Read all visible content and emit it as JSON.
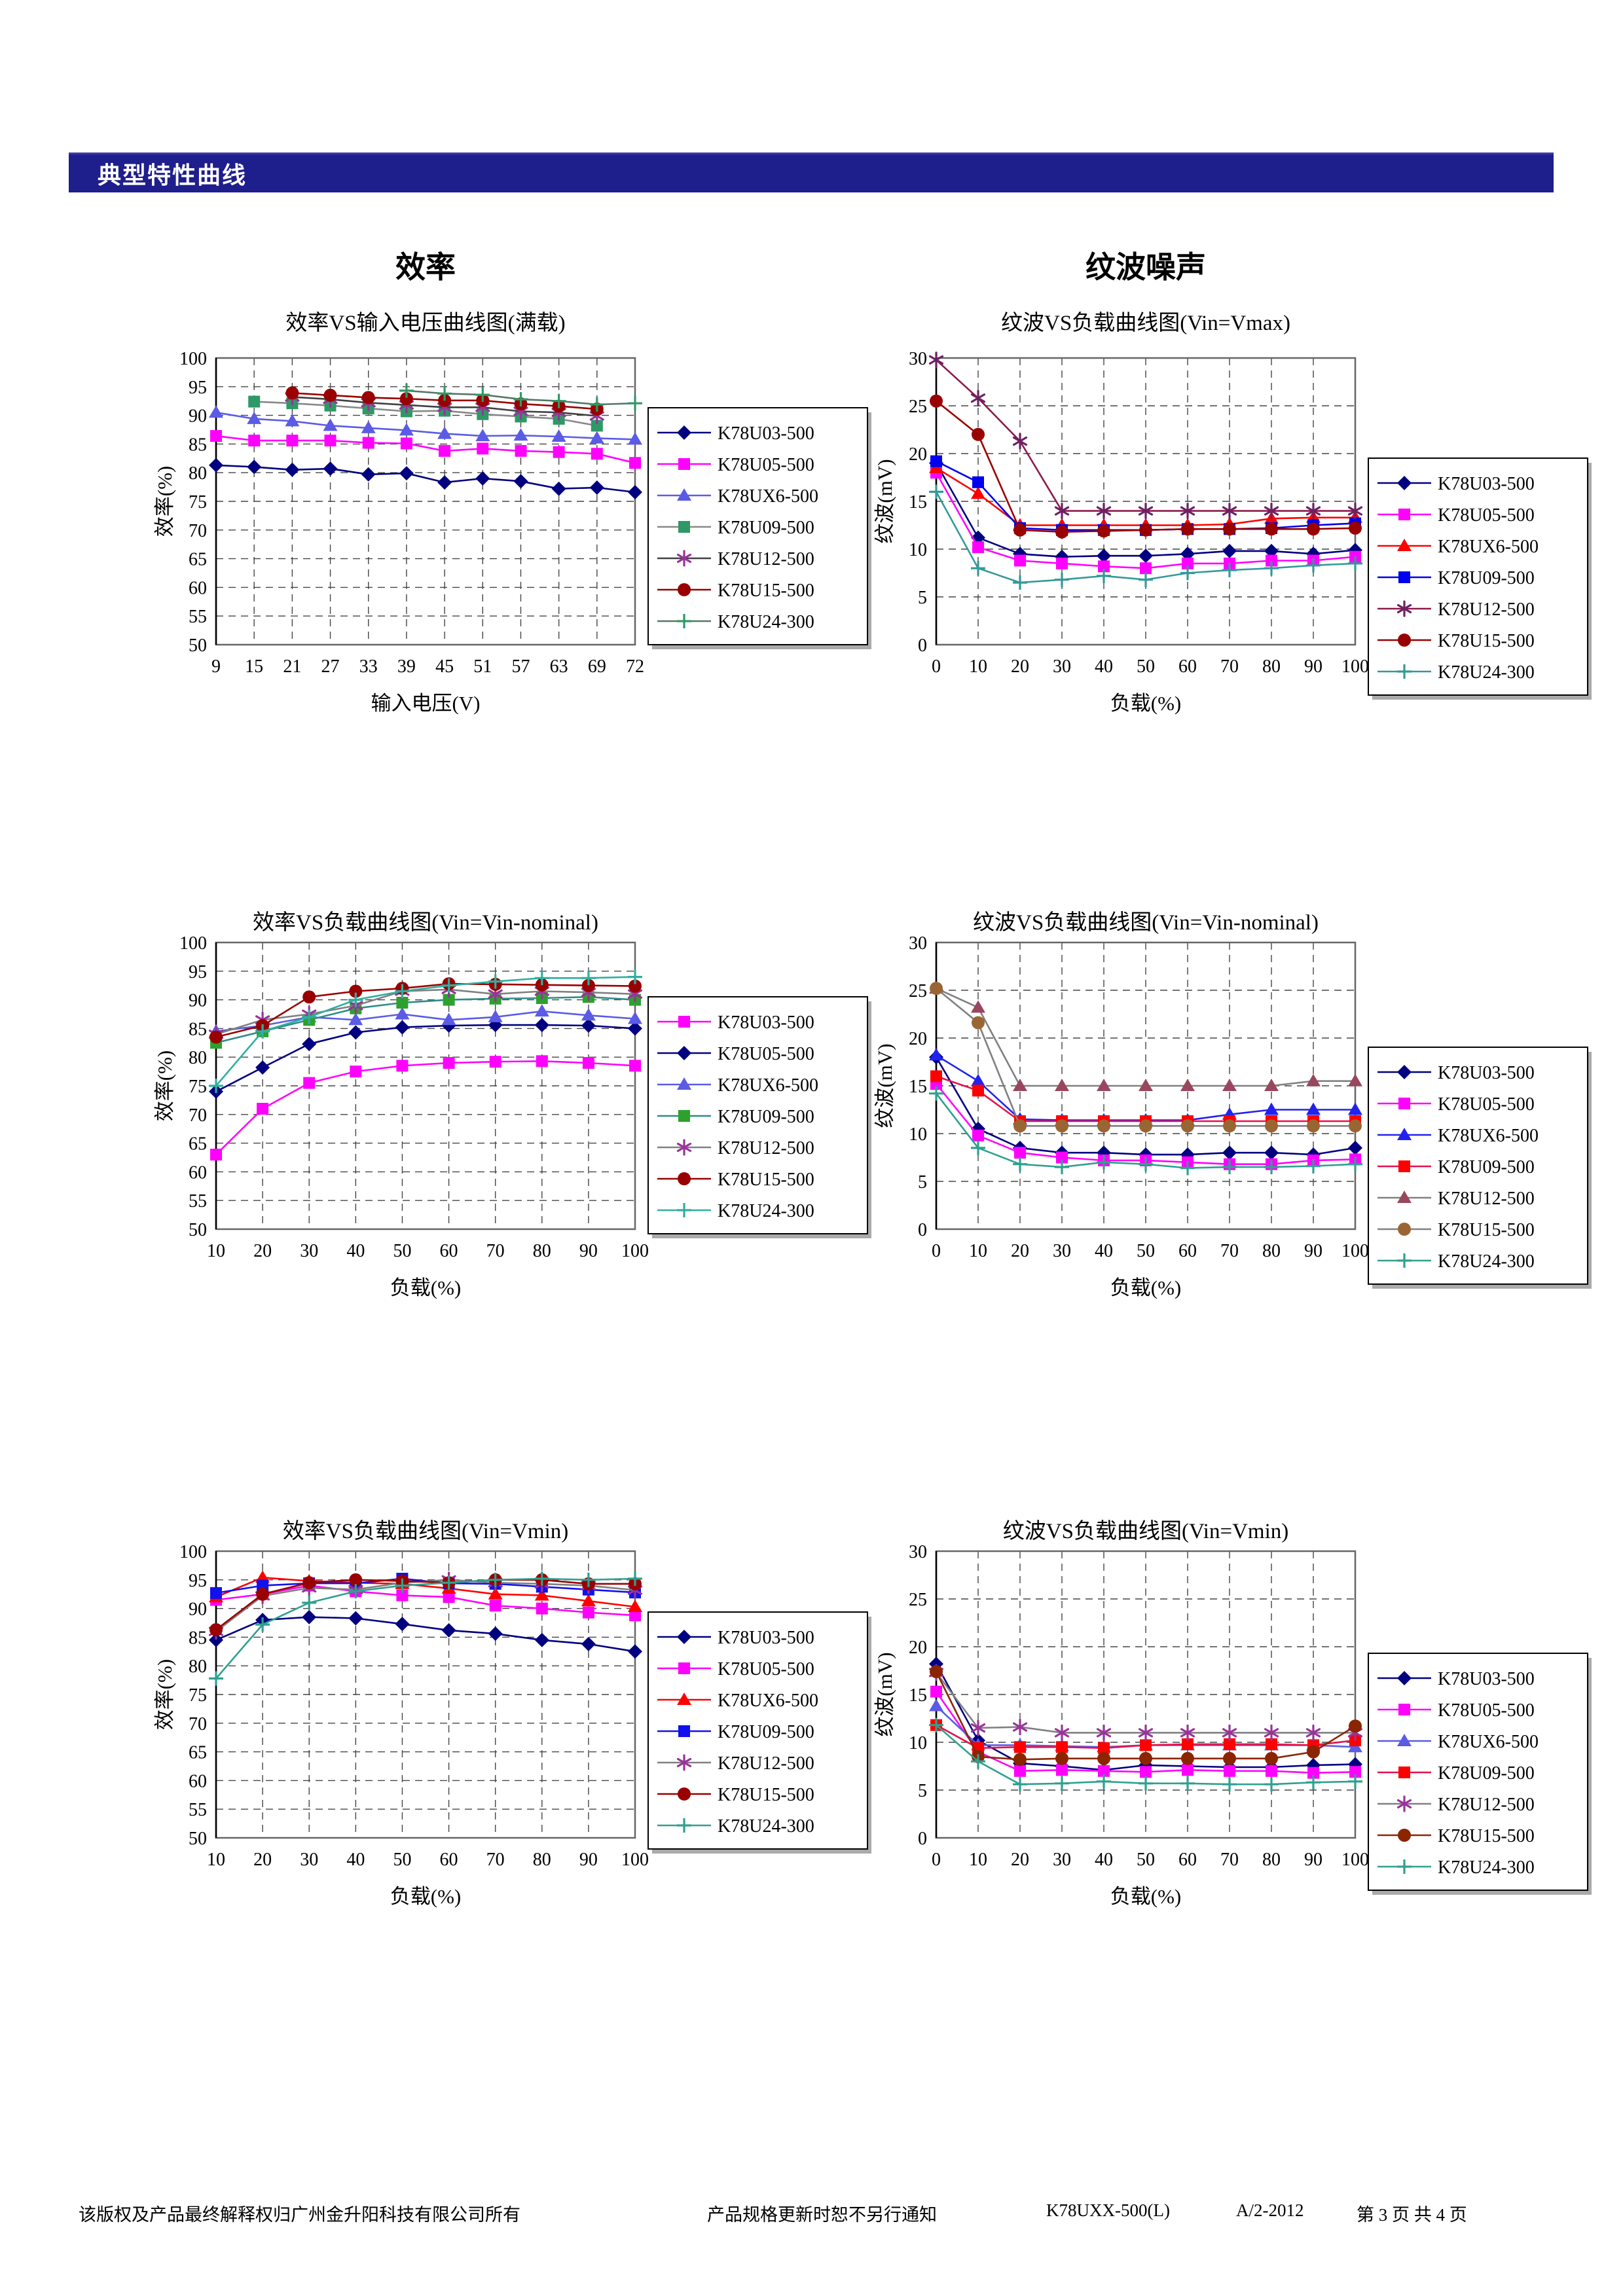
{
  "header": {
    "bar_title": "典型特性曲线"
  },
  "sections": {
    "left_title": "效率",
    "right_title": "纹波噪声"
  },
  "footer": {
    "copyright": "该版权及产品最终解释权归广州金升阳科技有限公司所有",
    "notice": "产品规格更新时恕不另行通知",
    "model": "K78UXX-500(L)",
    "revision": "A/2-2012",
    "page": "第 3 页 共 4 页"
  },
  "chart_data": [
    {
      "id": "eff-vs-vin-fullload",
      "type": "line",
      "title": "效率VS输入电压曲线图(满载)",
      "xlabel": "输入电压(V)",
      "ylabel": "效率(%)",
      "x": [
        "9",
        "15",
        "21",
        "27",
        "33",
        "39",
        "45",
        "51",
        "57",
        "63",
        "69",
        "72"
      ],
      "ylim": [
        50,
        100
      ],
      "ystep": 5,
      "grid": true,
      "legend_position": "right-upper",
      "legend_y": 88,
      "series": [
        {
          "name": "K78U03-500",
          "marker": "diamond",
          "color": "#000080",
          "line": "#000080",
          "values": [
            81.3,
            81,
            80.5,
            80.7,
            79.7,
            79.9,
            78.3,
            79,
            78.5,
            77.2,
            77.4,
            76.6
          ]
        },
        {
          "name": "K78U05-500",
          "marker": "square",
          "color": "#ff00ff",
          "line": "#ff00ff",
          "values": [
            86.4,
            85.6,
            85.6,
            85.6,
            85.2,
            85.1,
            83.8,
            84.2,
            83.8,
            83.6,
            83.3,
            81.7
          ]
        },
        {
          "name": "K78UX6-500",
          "marker": "triangle",
          "color": "#5b5be6",
          "line": "#5b5be6",
          "values": [
            90.5,
            89.4,
            89,
            88.2,
            87.8,
            87.4,
            86.8,
            86.4,
            86.5,
            86.3,
            86,
            85.8
          ]
        },
        {
          "name": "K78U09-500",
          "marker": "square",
          "color": "#2e9966",
          "line": "#888888",
          "values": [
            null,
            92.4,
            92.1,
            91.7,
            91.2,
            90.7,
            90.8,
            90.2,
            89.8,
            89.4,
            88.2,
            null
          ]
        },
        {
          "name": "K78U12-500",
          "marker": "asterisk",
          "color": "#993399",
          "line": "#404040",
          "values": [
            null,
            null,
            93.2,
            92.8,
            92.2,
            91.8,
            91.4,
            91.4,
            90.7,
            90.5,
            89.9,
            null
          ]
        },
        {
          "name": "K78U15-500",
          "marker": "circle",
          "color": "#990000",
          "line": "#990000",
          "values": [
            null,
            null,
            93.9,
            93.5,
            93.1,
            92.9,
            92.6,
            92.6,
            92,
            91.6,
            91.1,
            null
          ]
        },
        {
          "name": "K78U24-300",
          "marker": "cross",
          "color": "#2e9966",
          "line": "#557766",
          "values": [
            null,
            null,
            null,
            null,
            null,
            94.3,
            93.8,
            93.6,
            92.8,
            92.5,
            91.9,
            92.1
          ]
        }
      ]
    },
    {
      "id": "ripple-vs-load-vmax",
      "type": "line",
      "title": "纹波VS负载曲线图(Vin=Vmax)",
      "xlabel": "负载(%)",
      "ylabel": "纹波(mV)",
      "x": [
        "0",
        "10",
        "20",
        "30",
        "40",
        "50",
        "60",
        "70",
        "80",
        "90",
        "100"
      ],
      "ylim": [
        0,
        30
      ],
      "ystep": 5,
      "grid": true,
      "legend_position": "right-middle",
      "legend_y": 165,
      "series": [
        {
          "name": "K78U03-500",
          "marker": "diamond",
          "color": "#000080",
          "line": "#000080",
          "values": [
            19,
            11.2,
            9.5,
            9.2,
            9.3,
            9.3,
            9.5,
            9.8,
            9.8,
            9.5,
            9.9
          ]
        },
        {
          "name": "K78U05-500",
          "marker": "square",
          "color": "#ff00ff",
          "line": "#ff00ff",
          "values": [
            18,
            10.2,
            8.8,
            8.5,
            8.2,
            8,
            8.5,
            8.5,
            8.8,
            8.8,
            9.2
          ]
        },
        {
          "name": "K78UX6-500",
          "marker": "triangle",
          "color": "#ff0000",
          "line": "#ff0000",
          "values": [
            18.5,
            15.8,
            12.5,
            12.5,
            12.5,
            12.5,
            12.5,
            12.6,
            13.2,
            13.3,
            13.3
          ]
        },
        {
          "name": "K78U09-500",
          "marker": "square",
          "color": "#0000ee",
          "line": "#0000ee",
          "values": [
            19.2,
            17,
            12.2,
            12,
            12,
            12,
            12.1,
            12.1,
            12.2,
            12.5,
            12.7
          ]
        },
        {
          "name": "K78U12-500",
          "marker": "asterisk",
          "color": "#6b2162",
          "line": "#8b1a4a",
          "values": [
            29.8,
            25.8,
            21.3,
            14,
            14,
            14,
            14,
            14,
            14,
            14,
            14
          ]
        },
        {
          "name": "K78U15-500",
          "marker": "circle",
          "color": "#990000",
          "line": "#990000",
          "values": [
            25.5,
            22,
            12,
            11.8,
            11.9,
            12,
            12.1,
            12.1,
            12.1,
            12.1,
            12.2
          ]
        },
        {
          "name": "K78U24-300",
          "marker": "cross",
          "color": "#339999",
          "line": "#339999",
          "values": [
            16,
            8,
            6.5,
            6.8,
            7.2,
            6.8,
            7.5,
            7.8,
            8,
            8.3,
            8.5
          ]
        }
      ]
    },
    {
      "id": "eff-vs-load-nominal",
      "type": "line",
      "title": "效率VS负载曲线图(Vin=Vin-nominal)",
      "xlabel": "负载(%)",
      "ylabel": "效率(%)",
      "x": [
        "10",
        "20",
        "30",
        "40",
        "50",
        "60",
        "70",
        "80",
        "90",
        "100"
      ],
      "ylim": [
        50,
        100
      ],
      "ystep": 5,
      "grid": true,
      "legend_position": "right-upper",
      "legend_y": 95,
      "series": [
        {
          "name": "K78U03-500",
          "marker": "square",
          "color": "#ff00ff",
          "line": "#ff00ff",
          "values": [
            63,
            71,
            75.5,
            77.5,
            78.5,
            79,
            79.2,
            79.3,
            79,
            78.5
          ]
        },
        {
          "name": "K78U05-500",
          "marker": "diamond",
          "color": "#000080",
          "line": "#000080",
          "values": [
            74,
            78.2,
            82.3,
            84.3,
            85.2,
            85.5,
            85.6,
            85.6,
            85.5,
            85
          ]
        },
        {
          "name": "K78UX6-500",
          "marker": "triangle",
          "color": "#5b5be6",
          "line": "#5b5be6",
          "values": [
            84.5,
            85.5,
            87,
            86.5,
            87.5,
            86.5,
            87,
            88,
            87.3,
            86.7
          ]
        },
        {
          "name": "K78U09-500",
          "marker": "square",
          "color": "#2da12d",
          "line": "#2e8b8b",
          "values": [
            82.5,
            84.5,
            86.5,
            88.5,
            89.5,
            90,
            90.2,
            90.3,
            90.5,
            90
          ]
        },
        {
          "name": "K78U12-500",
          "marker": "asterisk",
          "color": "#993399",
          "line": "#808080",
          "values": [
            84,
            86.5,
            87.5,
            89,
            91.5,
            91.8,
            91,
            91.5,
            91.3,
            91
          ]
        },
        {
          "name": "K78U15-500",
          "marker": "circle",
          "color": "#990000",
          "line": "#990000",
          "values": [
            83.5,
            85.5,
            90.5,
            91.5,
            92,
            92.8,
            92.7,
            92.6,
            92.5,
            92.4
          ]
        },
        {
          "name": "K78U24-300",
          "marker": "cross",
          "color": "#2faf9f",
          "line": "#2faf9f",
          "values": [
            75,
            84.5,
            87,
            90,
            91.5,
            92.5,
            93.2,
            93.8,
            93.8,
            94
          ]
        }
      ]
    },
    {
      "id": "ripple-vs-load-nominal",
      "type": "line",
      "title": "纹波VS负载曲线图(Vin=Vin-nominal)",
      "xlabel": "负载(%)",
      "ylabel": "纹波(mV)",
      "x": [
        "0",
        "10",
        "20",
        "30",
        "40",
        "50",
        "60",
        "70",
        "80",
        "90",
        "100"
      ],
      "ylim": [
        0,
        30
      ],
      "ystep": 5,
      "grid": true,
      "legend_position": "right-middle",
      "legend_y": 172,
      "series": [
        {
          "name": "K78U03-500",
          "marker": "diamond",
          "color": "#000080",
          "line": "#000080",
          "values": [
            18,
            10.5,
            8.5,
            8,
            8,
            7.8,
            7.8,
            8,
            8,
            7.8,
            8.5
          ]
        },
        {
          "name": "K78U05-500",
          "marker": "square",
          "color": "#ff00ff",
          "line": "#ff00ff",
          "values": [
            15.2,
            9.8,
            8,
            7.5,
            7.2,
            7.2,
            7,
            6.8,
            6.8,
            7.2,
            7.3
          ]
        },
        {
          "name": "K78UX6-500",
          "marker": "triangle",
          "color": "#2222ee",
          "line": "#2222ee",
          "values": [
            18.2,
            15.5,
            11.5,
            11.4,
            11.4,
            11.4,
            11.4,
            12,
            12.5,
            12.5,
            12.5
          ]
        },
        {
          "name": "K78U09-500",
          "marker": "square",
          "color": "#ff0000",
          "line": "#e8114b",
          "values": [
            16,
            14.5,
            11.3,
            11.3,
            11.3,
            11.3,
            11.3,
            11.3,
            11.3,
            11.3,
            11.3
          ]
        },
        {
          "name": "K78U12-500",
          "marker": "triangle",
          "color": "#99475e",
          "line": "#808080",
          "values": [
            25.2,
            23.2,
            15,
            15,
            15,
            15,
            15,
            15,
            15,
            15.5,
            15.5
          ]
        },
        {
          "name": "K78U15-500",
          "marker": "circle",
          "color": "#996633",
          "line": "#808080",
          "values": [
            25.2,
            21.6,
            10.8,
            10.8,
            10.8,
            10.8,
            10.8,
            10.8,
            10.8,
            10.8,
            10.8
          ]
        },
        {
          "name": "K78U24-300",
          "marker": "cross",
          "color": "#2fa08f",
          "line": "#2fa08f",
          "values": [
            14.2,
            8.5,
            6.8,
            6.5,
            7,
            6.8,
            6.4,
            6.5,
            6.5,
            6.6,
            6.8
          ]
        }
      ]
    },
    {
      "id": "eff-vs-load-vmin",
      "type": "line",
      "title": "效率VS负载曲线图(Vin=Vmin)",
      "xlabel": "负载(%)",
      "ylabel": "效率(%)",
      "x": [
        "10",
        "20",
        "30",
        "40",
        "50",
        "60",
        "70",
        "80",
        "90",
        "100"
      ],
      "ylim": [
        50,
        100
      ],
      "ystep": 5,
      "grid": true,
      "legend_position": "right-upper",
      "legend_y": 105,
      "series": [
        {
          "name": "K78U03-500",
          "marker": "diamond",
          "color": "#000080",
          "line": "#000080",
          "values": [
            84.5,
            88,
            88.5,
            88.3,
            87.3,
            86.2,
            85.6,
            84.5,
            83.8,
            82.5
          ]
        },
        {
          "name": "K78U05-500",
          "marker": "square",
          "color": "#ff00ff",
          "line": "#ff00ff",
          "values": [
            91.5,
            92.5,
            94,
            93,
            92.3,
            92,
            90.5,
            90,
            89.3,
            88.8
          ]
        },
        {
          "name": "K78UX6-500",
          "marker": "triangle",
          "color": "#ff0000",
          "line": "#ff0000",
          "values": [
            92,
            95.4,
            94.8,
            94.5,
            94.3,
            93.5,
            92.5,
            92.3,
            91.3,
            90.3
          ]
        },
        {
          "name": "K78U09-500",
          "marker": "square",
          "color": "#1111ee",
          "line": "#1111ee",
          "values": [
            92.7,
            94,
            94.4,
            94.4,
            95.2,
            94.4,
            94.3,
            93.8,
            93.3,
            92.8
          ]
        },
        {
          "name": "K78U12-500",
          "marker": "asterisk",
          "color": "#993399",
          "line": "#808080",
          "values": [
            86,
            92.2,
            93.6,
            93.3,
            94.5,
            95,
            94.5,
            94.3,
            94,
            93.2
          ]
        },
        {
          "name": "K78U15-500",
          "marker": "circle",
          "color": "#990000",
          "line": "#990000",
          "values": [
            86.3,
            92.5,
            94.5,
            95,
            94.8,
            94.5,
            95,
            95,
            94.3,
            94.3
          ]
        },
        {
          "name": "K78U24-300",
          "marker": "cross",
          "color": "#2fa08f",
          "line": "#2fa08f",
          "values": [
            77.8,
            87.2,
            91,
            93,
            94,
            94.5,
            95,
            95.2,
            95,
            95.2
          ]
        }
      ]
    },
    {
      "id": "ripple-vs-load-vmin",
      "type": "line",
      "title": "纹波VS负载曲线图(Vin=Vmin)",
      "xlabel": "负载(%)",
      "ylabel": "纹波(mV)",
      "x": [
        "0",
        "10",
        "20",
        "30",
        "40",
        "50",
        "60",
        "70",
        "80",
        "90",
        "100"
      ],
      "ylim": [
        0,
        30
      ],
      "ystep": 5,
      "grid": true,
      "legend_position": "right-middle",
      "legend_y": 168,
      "series": [
        {
          "name": "K78U03-500",
          "marker": "diamond",
          "color": "#000080",
          "line": "#000080",
          "values": [
            18.2,
            10.2,
            7.8,
            7.5,
            7.1,
            7.6,
            7.5,
            7.4,
            7.4,
            7.6,
            7.7
          ]
        },
        {
          "name": "K78U05-500",
          "marker": "square",
          "color": "#ff00ff",
          "line": "#ff00ff",
          "values": [
            15.3,
            9,
            7,
            7.1,
            7,
            6.9,
            7.1,
            7,
            7,
            6.8,
            6.9
          ]
        },
        {
          "name": "K78UX6-500",
          "marker": "triangle",
          "color": "#5b5be6",
          "line": "#5b5be6",
          "values": [
            13.8,
            9.7,
            9.7,
            9.6,
            9.5,
            9.7,
            9.7,
            9.7,
            9.7,
            9.7,
            9.5
          ]
        },
        {
          "name": "K78U09-500",
          "marker": "square",
          "color": "#ff0000",
          "line": "#e8114b",
          "values": [
            11.8,
            9.4,
            9.5,
            9.5,
            9.4,
            9.7,
            9.8,
            9.8,
            9.8,
            9.7,
            10.2
          ]
        },
        {
          "name": "K78U12-500",
          "marker": "asterisk",
          "color": "#993399",
          "line": "#808080",
          "values": [
            17.3,
            11.5,
            11.6,
            11,
            11,
            11,
            11,
            11,
            11,
            11,
            11
          ]
        },
        {
          "name": "K78U15-500",
          "marker": "circle",
          "color": "#8b2500",
          "line": "#8b2500",
          "values": [
            17.4,
            8.5,
            8.2,
            8.3,
            8.3,
            8.3,
            8.3,
            8.3,
            8.3,
            9,
            11.7
          ]
        },
        {
          "name": "K78U24-300",
          "marker": "cross",
          "color": "#2fa08f",
          "line": "#2fa08f",
          "values": [
            11.8,
            8,
            5.6,
            5.7,
            5.9,
            5.7,
            5.7,
            5.6,
            5.6,
            5.8,
            5.9
          ]
        }
      ]
    }
  ]
}
